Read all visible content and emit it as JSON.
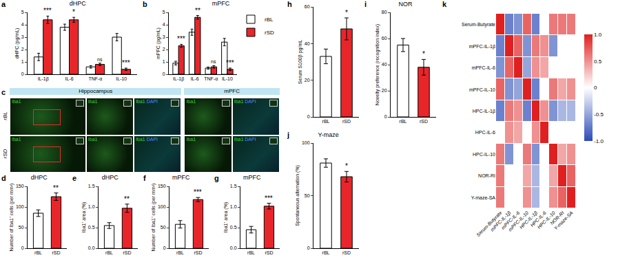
{
  "chart_data": [
    {
      "panel": "a",
      "type": "bar",
      "title": "dHPC",
      "ylabel": "dHPC (pg/mL)",
      "categories": [
        "IL-1β",
        "IL-6",
        "TNF-α",
        "IL-10"
      ],
      "series": [
        {
          "name": "rBL",
          "color": "#ffffff",
          "values": [
            1.4,
            3.8,
            0.6,
            3.0
          ],
          "errors": [
            0.3,
            0.25,
            0.1,
            0.3
          ]
        },
        {
          "name": "rSD",
          "color": "#e8262a",
          "values": [
            4.4,
            4.4,
            0.8,
            0.4
          ],
          "errors": [
            0.3,
            0.2,
            0.1,
            0.1
          ]
        }
      ],
      "annotations": [
        {
          "category": "IL-1β",
          "series": "rSD",
          "text": "***"
        },
        {
          "category": "IL-6",
          "series": "rSD",
          "text": "*"
        },
        {
          "category": "TNF-α",
          "series": "rSD",
          "text": "ns"
        },
        {
          "category": "IL-10",
          "series": "rSD",
          "text": "***"
        }
      ],
      "ylim": [
        0,
        5
      ],
      "yticks": [
        0,
        1,
        2,
        3,
        4,
        5
      ]
    },
    {
      "panel": "b",
      "type": "bar",
      "title": "mPFC",
      "ylabel": "mPFC (pg/mL)",
      "categories": [
        "IL-1β",
        "IL-6",
        "TNF-α",
        "IL-10"
      ],
      "series": [
        {
          "name": "rBL",
          "color": "#ffffff",
          "values": [
            0.9,
            3.4,
            0.5,
            2.6
          ],
          "errors": [
            0.15,
            0.25,
            0.08,
            0.3
          ]
        },
        {
          "name": "rSD",
          "color": "#e8262a",
          "values": [
            2.3,
            4.6,
            0.6,
            0.4
          ],
          "errors": [
            0.12,
            0.15,
            0.1,
            0.1
          ]
        }
      ],
      "annotations": [
        {
          "category": "IL-1β",
          "series": "rSD",
          "text": "***"
        },
        {
          "category": "IL-6",
          "series": "rSD",
          "text": "**"
        },
        {
          "category": "TNF-α",
          "series": "rSD",
          "text": "ns"
        },
        {
          "category": "IL-10",
          "series": "rSD",
          "text": "***"
        }
      ],
      "ylim": [
        0,
        5
      ],
      "yticks": [
        0,
        1,
        2,
        3,
        4,
        5
      ],
      "legend": "top right"
    },
    {
      "panel": "d",
      "type": "bar",
      "title": "dHPC",
      "ylabel": "Number of Iba1⁺ cells (per mm²)",
      "categories": [
        "rBL",
        "rSD"
      ],
      "values": [
        85,
        125
      ],
      "errors": [
        8,
        9
      ],
      "colors": [
        "#ffffff",
        "#e8262a"
      ],
      "annotations": [
        {
          "category": "rSD",
          "text": "**"
        }
      ],
      "ylim": [
        0,
        150
      ],
      "yticks": [
        0,
        50,
        100,
        150
      ]
    },
    {
      "panel": "e",
      "type": "bar",
      "title": "dHPC",
      "ylabel": "Iba1⁺ area (%)",
      "categories": [
        "rBL",
        "rSD"
      ],
      "values": [
        0.55,
        0.97
      ],
      "errors": [
        0.07,
        0.1
      ],
      "colors": [
        "#ffffff",
        "#e8262a"
      ],
      "annotations": [
        {
          "category": "rSD",
          "text": "**"
        }
      ],
      "ylim": [
        0,
        1.5
      ],
      "yticks": [
        {
          "value": 0,
          "label": "0.0"
        },
        0.5,
        {
          "value": 1,
          "label": "1.0"
        },
        1.5
      ]
    },
    {
      "panel": "f",
      "type": "bar",
      "title": "mPFC",
      "ylabel": "Number of Iba1⁺ cells (per mm²)",
      "categories": [
        "rBL",
        "rSD"
      ],
      "values": [
        58,
        118
      ],
      "errors": [
        9,
        5
      ],
      "colors": [
        "#ffffff",
        "#e8262a"
      ],
      "annotations": [
        {
          "category": "rSD",
          "text": "***"
        }
      ],
      "ylim": [
        0,
        150
      ],
      "yticks": [
        0,
        50,
        100,
        150
      ]
    },
    {
      "panel": "g",
      "type": "bar",
      "title": "mPFC",
      "ylabel": "Iba1⁺ area (%)",
      "categories": [
        "rBL",
        "rSD"
      ],
      "values": [
        0.45,
        1.02
      ],
      "errors": [
        0.08,
        0.07
      ],
      "colors": [
        "#ffffff",
        "#e8262a"
      ],
      "annotations": [
        {
          "category": "rSD",
          "text": "***"
        }
      ],
      "ylim": [
        0,
        1.5
      ],
      "yticks": [
        {
          "value": 0,
          "label": "0.0"
        },
        0.5,
        {
          "value": 1,
          "label": "1.0"
        },
        1.5
      ]
    },
    {
      "panel": "h",
      "type": "bar",
      "ylabel": "Serum S100β pg/mL",
      "categories": [
        "rBL",
        "rSD"
      ],
      "values": [
        33,
        48
      ],
      "errors": [
        4,
        6
      ],
      "colors": [
        "#ffffff",
        "#e8262a"
      ],
      "annotations": [
        {
          "category": "rSD",
          "text": "*"
        }
      ],
      "ylim": [
        0,
        60
      ],
      "yticks": [
        0,
        20,
        40,
        60
      ]
    },
    {
      "panel": "i",
      "type": "bar",
      "title": "NOR",
      "ylabel": "Novelty preference (recognition index)",
      "categories": [
        "rBL",
        "rSD"
      ],
      "values": [
        55,
        38
      ],
      "errors": [
        5,
        6
      ],
      "colors": [
        "#ffffff",
        "#e8262a"
      ],
      "annotations": [
        {
          "category": "rSD",
          "text": "*"
        }
      ],
      "ylim": [
        0,
        80
      ],
      "yticks": [
        0,
        20,
        40,
        60,
        80
      ]
    },
    {
      "panel": "j",
      "type": "bar",
      "title": "Y-maze",
      "ylabel": "Spontaneous alternation (%)",
      "categories": [
        "rBL",
        "rSD"
      ],
      "values": [
        81,
        68
      ],
      "errors": [
        4,
        5
      ],
      "colors": [
        "#ffffff",
        "#e8262a"
      ],
      "annotations": [
        {
          "category": "rSD",
          "text": "*"
        }
      ],
      "ylim": [
        0,
        100
      ],
      "yticks": [
        0,
        50,
        100
      ]
    },
    {
      "panel": "k",
      "type": "heatmap",
      "labels": [
        "Serum-Butyrate",
        "mPFC-IL-1β",
        "mPFC-IL-6",
        "mPFC-IL-10",
        "HPC-IL-1β",
        "HPC-IL-6",
        "HPC-IL-10",
        "NOR-RI",
        "Y-maze-SA"
      ],
      "cells": [
        [
          1,
          -0.7,
          -0.6,
          0.7,
          -0.7,
          0,
          0.6,
          0.6,
          0.6
        ],
        [
          -0.7,
          1,
          0.7,
          -0.6,
          0.6,
          0.5,
          -0.6,
          0,
          0
        ],
        [
          -0.6,
          0.7,
          1,
          -0.5,
          0.5,
          0.4,
          0,
          0,
          0
        ],
        [
          0.7,
          -0.6,
          -0.5,
          1,
          -0.7,
          0,
          0.6,
          0.4,
          0.5
        ],
        [
          -0.7,
          0.6,
          0.5,
          -0.7,
          1,
          0.5,
          -0.6,
          -0.4,
          -0.4
        ],
        [
          0,
          0.5,
          0.4,
          0,
          0.5,
          1,
          0,
          0,
          0
        ],
        [
          0.6,
          -0.6,
          0,
          0.6,
          -0.6,
          0,
          1,
          0.4,
          0.5
        ],
        [
          0.6,
          0,
          0,
          0.4,
          -0.4,
          0,
          0.4,
          1,
          0.7
        ],
        [
          0.6,
          0,
          0,
          0.5,
          -0.4,
          0,
          0.5,
          0.7,
          1
        ]
      ],
      "colorbar_range": [
        -1,
        1
      ],
      "colorbar_ticks": [
        {
          "value": 1,
          "label": "1.0"
        },
        0.5,
        0,
        -0.5,
        {
          "value": -1,
          "label": "-1.0"
        }
      ]
    }
  ],
  "micrographs": {
    "panel": "c",
    "row_labels": [
      "rBL",
      "rSD"
    ],
    "regions": [
      {
        "title": "Hippocampus",
        "tiles": [
          [
            "Iba1"
          ],
          [
            "Iba1"
          ],
          [
            "Iba1",
            "DAPI"
          ]
        ]
      },
      {
        "title": "mPFC",
        "tiles": [
          [
            "Iba1"
          ],
          [
            "Iba1",
            "DAPI"
          ]
        ]
      }
    ]
  }
}
